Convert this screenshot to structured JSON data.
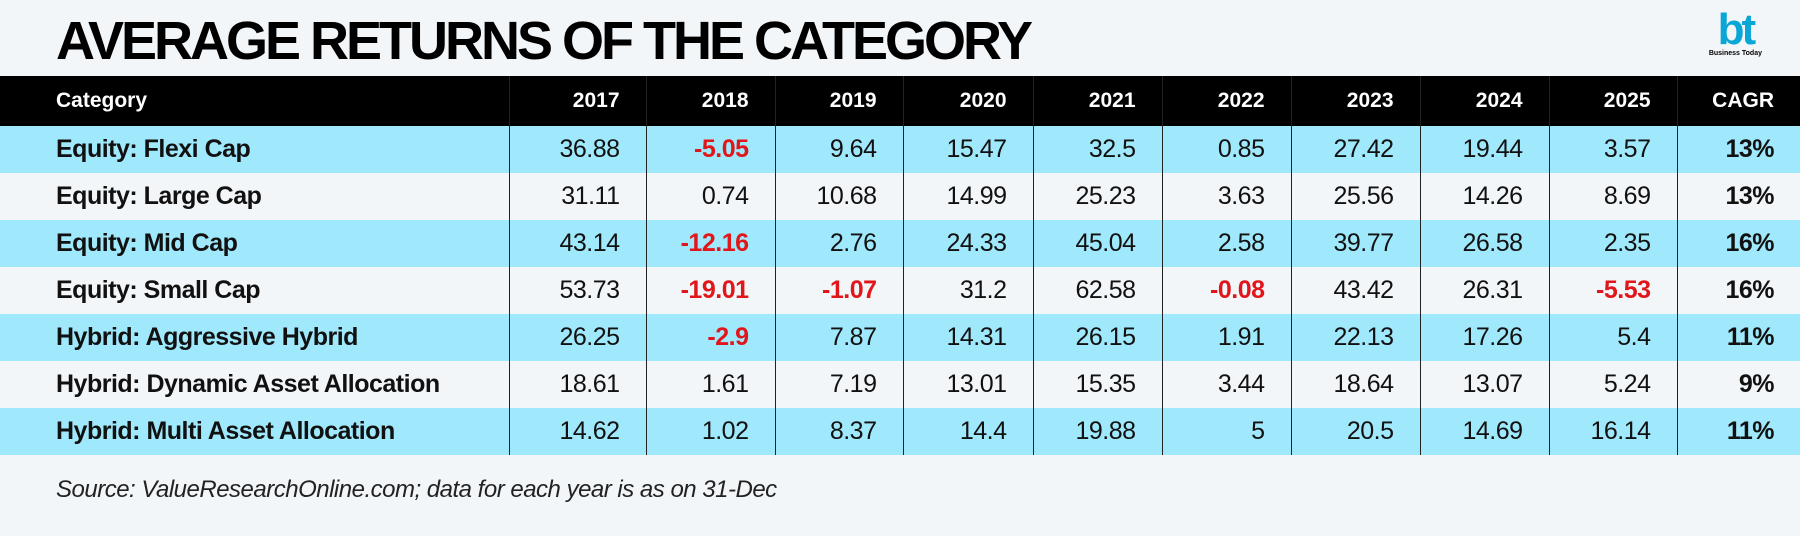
{
  "header": {
    "title": "AVERAGE RETURNS OF THE CATEGORY",
    "logo": "bt",
    "logo_caption": "Business Today"
  },
  "table": {
    "columns": [
      "Category",
      "2017",
      "2018",
      "2019",
      "2020",
      "2021",
      "2022",
      "2023",
      "2024",
      "2025",
      "CAGR"
    ],
    "rows": [
      [
        "Equity: Flexi Cap",
        "36.88",
        "-5.05",
        "9.64",
        "15.47",
        "32.5",
        "0.85",
        "27.42",
        "19.44",
        "3.57",
        "13%"
      ],
      [
        "Equity: Large Cap",
        "31.11",
        "0.74",
        "10.68",
        "14.99",
        "25.23",
        "3.63",
        "25.56",
        "14.26",
        "8.69",
        "13%"
      ],
      [
        "Equity: Mid Cap",
        "43.14",
        "-12.16",
        "2.76",
        "24.33",
        "45.04",
        "2.58",
        "39.77",
        "26.58",
        "2.35",
        "16%"
      ],
      [
        "Equity: Small Cap",
        "53.73",
        "-19.01",
        "-1.07",
        "31.2",
        "62.58",
        "-0.08",
        "43.42",
        "26.31",
        "-5.53",
        "16%"
      ],
      [
        "Hybrid: Aggressive Hybrid",
        "26.25",
        "-2.9",
        "7.87",
        "14.31",
        "26.15",
        "1.91",
        "22.13",
        "17.26",
        "5.4",
        "11%"
      ],
      [
        "Hybrid: Dynamic Asset Allocation",
        "18.61",
        "1.61",
        "7.19",
        "13.01",
        "15.35",
        "3.44",
        "18.64",
        "13.07",
        "5.24",
        "9%"
      ],
      [
        "Hybrid: Multi Asset Allocation",
        "14.62",
        "1.02",
        "8.37",
        "14.4",
        "19.88",
        "5",
        "20.5",
        "14.69",
        "16.14",
        "11%"
      ]
    ]
  },
  "footer": {
    "source": "Source: ValueResearchOnline.com; data for each year is as on 31-Dec"
  }
}
